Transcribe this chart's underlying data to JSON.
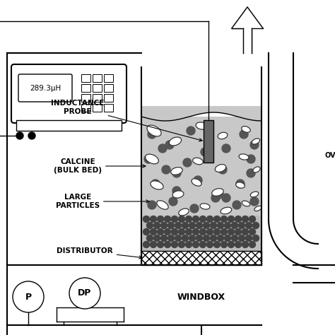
{
  "bg_color": "#ffffff",
  "line_color": "#000000",
  "gray_bed": "#c8c8c8",
  "meter_display": "289.3μH",
  "labels": {
    "inductance_probe": "INDUCTANCE\nPROBE",
    "calcine": "CALCINE\n(BULK BED)",
    "large_particles": "LARGE\nPARTICLES",
    "distributor": "DISTRIBUTOR",
    "windbox": "WINDBOX",
    "p_label": "P",
    "dp_label": "DP"
  },
  "figsize": [
    4.74,
    4.74
  ],
  "dpi": 100
}
